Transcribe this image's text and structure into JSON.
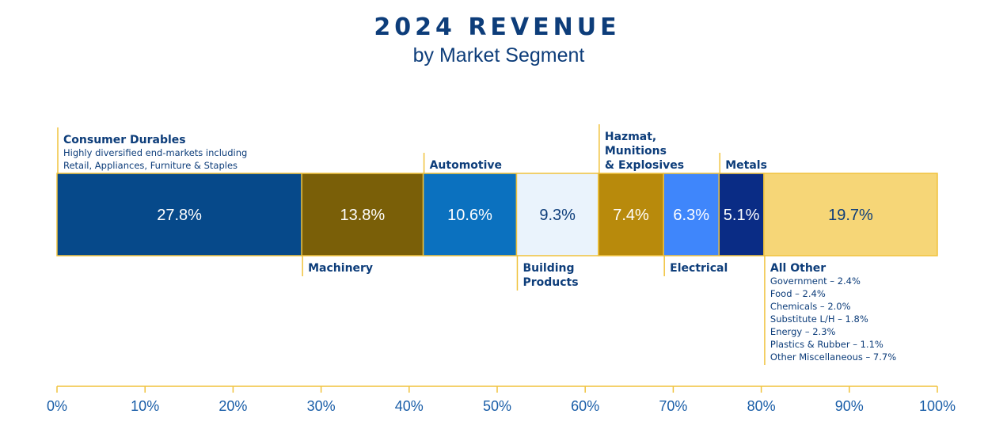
{
  "chart_data": {
    "type": "bar",
    "subtype": "stacked-100-percent",
    "title": "2024 REVENUE",
    "subtitle": "by Market Segment",
    "xlim": [
      0,
      100
    ],
    "ticks": [
      "0%",
      "10%",
      "20%",
      "30%",
      "40%",
      "50%",
      "60%",
      "70%",
      "80%",
      "90%",
      "100%"
    ],
    "grid": false,
    "series": [
      {
        "name": "Consumer Durables",
        "value": 27.8,
        "value_label": "27.8%",
        "color": "#06498a",
        "text_color": "#ffffff",
        "label_lines": [
          "Consumer Durables"
        ],
        "desc_lines": [
          "Highly diversified end-markets including",
          "Retail, Appliances, Furniture & Staples"
        ],
        "side": "above"
      },
      {
        "name": "Machinery",
        "value": 13.8,
        "value_label": "13.8%",
        "color": "#7a5f08",
        "text_color": "#ffffff",
        "label_lines": [
          "Machinery"
        ],
        "desc_lines": [],
        "side": "below"
      },
      {
        "name": "Automotive",
        "value": 10.6,
        "value_label": "10.6%",
        "color": "#0b71bf",
        "text_color": "#ffffff",
        "label_lines": [
          "Automotive"
        ],
        "desc_lines": [],
        "side": "above"
      },
      {
        "name": "Building Products",
        "value": 9.3,
        "value_label": "9.3%",
        "color": "#eaf3fc",
        "text_color": "#0d3d7a",
        "label_lines": [
          "Building",
          "Products"
        ],
        "desc_lines": [],
        "side": "below"
      },
      {
        "name": "Hazmat, Munitions & Explosives",
        "value": 7.4,
        "value_label": "7.4%",
        "color": "#b88a0c",
        "text_color": "#ffffff",
        "label_lines": [
          "Hazmat,",
          "Munitions",
          "& Explosives"
        ],
        "desc_lines": [],
        "side": "above"
      },
      {
        "name": "Electrical",
        "value": 6.3,
        "value_label": "6.3%",
        "color": "#3f86fb",
        "text_color": "#ffffff",
        "label_lines": [
          "Electrical"
        ],
        "desc_lines": [],
        "side": "below"
      },
      {
        "name": "Metals",
        "value": 5.1,
        "value_label": "5.1%",
        "color": "#0a2c85",
        "text_color": "#ffffff",
        "label_lines": [
          "Metals"
        ],
        "desc_lines": [],
        "side": "above"
      },
      {
        "name": "All Other",
        "value": 19.7,
        "value_label": "19.7%",
        "color": "#f6d677",
        "text_color": "#0d3d7a",
        "label_lines": [
          "All Other"
        ],
        "desc_lines": [
          "Government – 2.4%",
          "Food – 2.4%",
          "Chemicals – 2.0%",
          "Substitute L/H – 1.8%",
          "Energy – 2.3%",
          "Plastics & Rubber – 1.1%",
          "Other Miscellaneous – 7.7%"
        ],
        "side": "below"
      }
    ],
    "accent_line_color": "#f0c23c",
    "text_color": "#0d3d7a",
    "tick_color": "#1a5ea8"
  }
}
